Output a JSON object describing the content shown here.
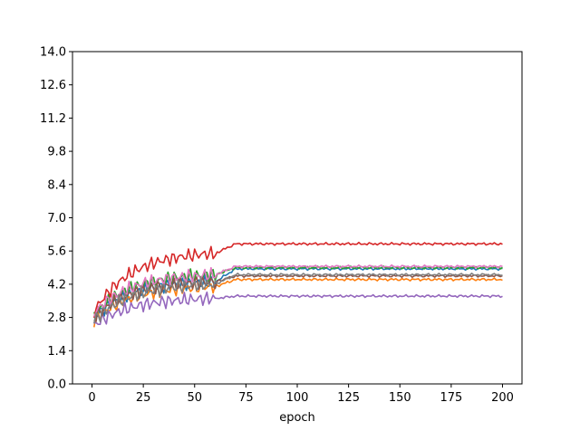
{
  "chart_data": {
    "type": "line",
    "title": "",
    "xlabel": "epoch",
    "ylabel": "",
    "xlim": [
      -9.5,
      209.5
    ],
    "ylim": [
      0,
      14
    ],
    "xticks": [
      0,
      25,
      50,
      75,
      100,
      125,
      150,
      175,
      200
    ],
    "yticks": [
      0,
      1.4,
      2.8,
      4.2,
      5.6,
      7.0,
      8.4,
      9.8,
      11.2,
      12.6,
      14.0
    ],
    "ytick_labels": [
      "0.0",
      "1.4",
      "2.8",
      "4.2",
      "5.6",
      "7.0",
      "8.4",
      "9.8",
      "11.2",
      "12.6",
      "14.0"
    ],
    "grid": false,
    "legend": "none",
    "series": [
      {
        "color": "#1f77b4",
        "start": 2.7,
        "plateau": 4.3,
        "final": 4.85,
        "phase": 0.3
      },
      {
        "color": "#ff7f0e",
        "start": 2.6,
        "plateau": 4.1,
        "final": 4.4,
        "phase": 1.1
      },
      {
        "color": "#2ca02c",
        "start": 2.8,
        "plateau": 4.6,
        "final": 4.9,
        "phase": 2.2
      },
      {
        "color": "#d62728",
        "start": 2.9,
        "plateau": 5.5,
        "final": 5.9,
        "phase": 0.7
      },
      {
        "color": "#9467bd",
        "start": 2.4,
        "plateau": 3.6,
        "final": 3.7,
        "phase": 1.8
      },
      {
        "color": "#8c564b",
        "start": 2.7,
        "plateau": 4.3,
        "final": 4.55,
        "phase": 2.7
      },
      {
        "color": "#e377c2",
        "start": 2.9,
        "plateau": 4.6,
        "final": 4.95,
        "phase": 0.5
      },
      {
        "color": "#7f7f7f",
        "start": 2.6,
        "plateau": 4.2,
        "final": 4.6,
        "phase": 1.4
      }
    ]
  }
}
